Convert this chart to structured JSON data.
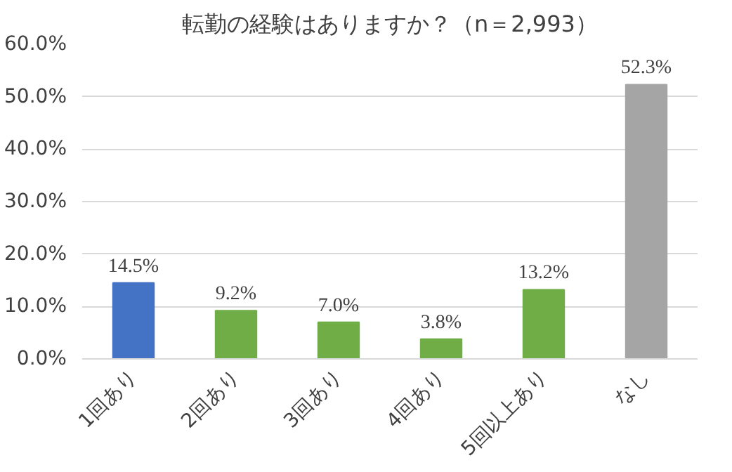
{
  "chart_data": {
    "type": "bar",
    "title": "転勤の経験はありますか？（n＝2,993）",
    "categories": [
      "1回あり",
      "2回あり",
      "3回あり",
      "4回あり",
      "5回以上あり",
      "なし"
    ],
    "values": [
      14.5,
      9.2,
      7.0,
      3.8,
      13.2,
      52.3
    ],
    "colors": [
      "#4472c4",
      "#70ad47",
      "#70ad47",
      "#70ad47",
      "#70ad47",
      "#a5a5a5"
    ],
    "value_labels": [
      "14.5%",
      "9.2%",
      "7.0%",
      "3.8%",
      "13.2%",
      "52.3%"
    ],
    "ylim": [
      0,
      60
    ],
    "yticks": [
      {
        "value": 0,
        "label": "0.0%"
      },
      {
        "value": 10,
        "label": "10.0%"
      },
      {
        "value": 20,
        "label": "20.0%"
      },
      {
        "value": 30,
        "label": "30.0%"
      },
      {
        "value": 40,
        "label": "40.0%"
      },
      {
        "value": 50,
        "label": "50.0%"
      },
      {
        "value": 60,
        "label": "60.0%"
      }
    ],
    "grid": "y"
  }
}
